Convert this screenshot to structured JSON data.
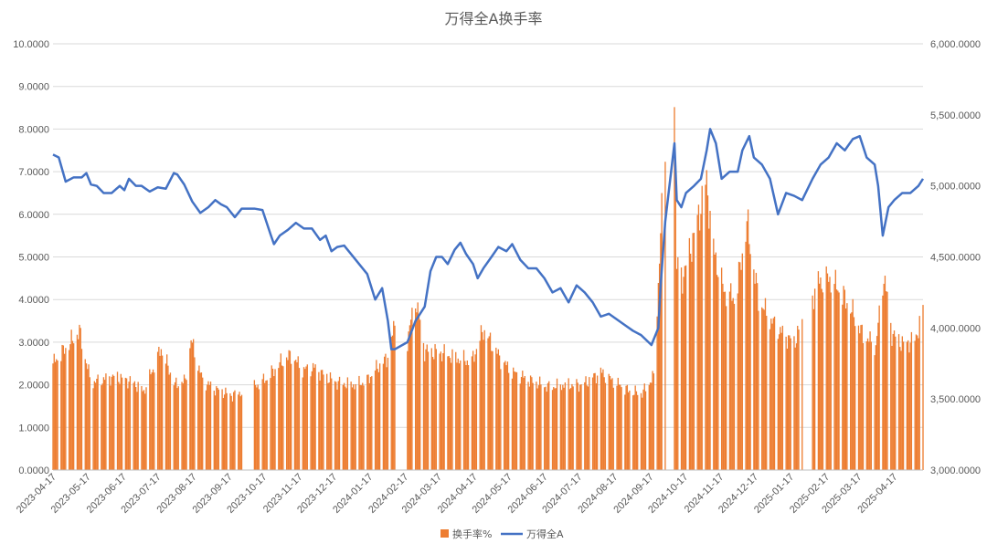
{
  "chart_data": {
    "type": "bar+line",
    "title": "万得全A换手率",
    "left_axis": {
      "min": 0,
      "max": 10,
      "step": 1,
      "tick_labels": [
        "0.0000",
        "1.0000",
        "2.0000",
        "3.0000",
        "4.0000",
        "5.0000",
        "6.0000",
        "7.0000",
        "8.0000",
        "9.0000",
        "10.0000"
      ]
    },
    "right_axis": {
      "min": 3000,
      "max": 6000,
      "step": 500,
      "tick_labels": [
        "3,000.0000",
        "3,500.0000",
        "4,000.0000",
        "4,500.0000",
        "5,000.0000",
        "5,500.0000",
        "6,000.0000"
      ]
    },
    "x_tick_labels": [
      "2023-04-17",
      "2023-05-17",
      "2023-06-17",
      "2023-07-17",
      "2023-08-17",
      "2023-09-17",
      "2023-10-17",
      "2023-11-17",
      "2023-12-17",
      "2024-01-17",
      "2024-02-17",
      "2024-03-17",
      "2024-04-17",
      "2024-05-17",
      "2024-06-17",
      "2024-07-17",
      "2024-08-17",
      "2024-09-17",
      "2024-10-17",
      "2024-11-17",
      "2024-12-17",
      "2025-01-17",
      "2025-02-17",
      "2025-03-17",
      "2025-04-17"
    ],
    "x_range": [
      "2023-04-17",
      "2025-05-12"
    ],
    "grid": true,
    "legend_position": "bottom",
    "colors": {
      "bar": "#ED7D31",
      "line": "#4472C4"
    },
    "series": [
      {
        "name": "换手率%",
        "type": "bar",
        "axis": "left",
        "points": [
          [
            "2023-04-17",
            2.5
          ],
          [
            "2023-05-10",
            3.25
          ],
          [
            "2023-05-20",
            2.05
          ],
          [
            "2023-06-10",
            2.2
          ],
          [
            "2023-06-26",
            2.05
          ],
          [
            "2023-07-05",
            1.85
          ],
          [
            "2023-07-20",
            2.85
          ],
          [
            "2023-08-01",
            2.0
          ],
          [
            "2023-08-10",
            2.1
          ],
          [
            "2023-08-15",
            3.05
          ],
          [
            "2023-08-25",
            2.1
          ],
          [
            "2023-09-05",
            1.9
          ],
          [
            "2023-09-20",
            1.75
          ],
          [
            "2023-10-09",
            1.95
          ],
          [
            "2023-10-20",
            2.15
          ],
          [
            "2023-10-31",
            2.5
          ],
          [
            "2023-11-10",
            2.7
          ],
          [
            "2023-11-20",
            2.35
          ],
          [
            "2023-11-30",
            2.4
          ],
          [
            "2023-12-10",
            2.2
          ],
          [
            "2023-12-20",
            2.05
          ],
          [
            "2024-01-05",
            2.0
          ],
          [
            "2024-01-15",
            2.1
          ],
          [
            "2024-01-25",
            2.45
          ],
          [
            "2024-02-01",
            2.6
          ],
          [
            "2024-02-08",
            3.4
          ],
          [
            "2024-02-19",
            3.05
          ],
          [
            "2024-02-26",
            4.05
          ],
          [
            "2024-03-05",
            2.8
          ],
          [
            "2024-03-20",
            2.75
          ],
          [
            "2024-04-05",
            2.6
          ],
          [
            "2024-04-15",
            2.55
          ],
          [
            "2024-04-25",
            3.3
          ],
          [
            "2024-05-10",
            2.6
          ],
          [
            "2024-05-20",
            2.3
          ],
          [
            "2024-06-05",
            2.1
          ],
          [
            "2024-06-20",
            1.95
          ],
          [
            "2024-07-05",
            2.0
          ],
          [
            "2024-07-20",
            2.0
          ],
          [
            "2024-08-05",
            2.3
          ],
          [
            "2024-08-15",
            2.1
          ],
          [
            "2024-08-30",
            1.85
          ],
          [
            "2024-09-10",
            1.8
          ],
          [
            "2024-09-20",
            2.2
          ],
          [
            "2024-09-26",
            5.5
          ],
          [
            "2024-09-30",
            7.5
          ],
          [
            "2024-10-08",
            9.0
          ],
          [
            "2024-10-10",
            4.8
          ],
          [
            "2024-10-15",
            4.5
          ],
          [
            "2024-10-25",
            5.5
          ],
          [
            "2024-11-05",
            6.8
          ],
          [
            "2024-11-10",
            5.3
          ],
          [
            "2024-11-20",
            4.2
          ],
          [
            "2024-11-30",
            4.0
          ],
          [
            "2024-12-10",
            5.8
          ],
          [
            "2024-12-20",
            4.0
          ],
          [
            "2024-12-31",
            3.5
          ],
          [
            "2025-01-10",
            3.2
          ],
          [
            "2025-01-20",
            3.0
          ],
          [
            "2025-02-10",
            4.4
          ],
          [
            "2025-02-20",
            4.5
          ],
          [
            "2025-03-01",
            4.2
          ],
          [
            "2025-03-10",
            3.8
          ],
          [
            "2025-03-20",
            3.2
          ],
          [
            "2025-04-01",
            2.9
          ],
          [
            "2025-04-08",
            4.6
          ],
          [
            "2025-04-15",
            3.2
          ],
          [
            "2025-04-25",
            2.95
          ],
          [
            "2025-05-05",
            3.05
          ],
          [
            "2025-05-12",
            3.7
          ]
        ]
      },
      {
        "name": "万得全A",
        "type": "line",
        "axis": "right",
        "points": [
          [
            "2023-04-17",
            5220
          ],
          [
            "2023-04-22",
            5200
          ],
          [
            "2023-04-28",
            5030
          ],
          [
            "2023-05-05",
            5060
          ],
          [
            "2023-05-12",
            5060
          ],
          [
            "2023-05-16",
            5090
          ],
          [
            "2023-05-20",
            5010
          ],
          [
            "2023-05-25",
            5000
          ],
          [
            "2023-05-31",
            4950
          ],
          [
            "2023-06-07",
            4950
          ],
          [
            "2023-06-14",
            5000
          ],
          [
            "2023-06-18",
            4970
          ],
          [
            "2023-06-22",
            5050
          ],
          [
            "2023-06-28",
            5000
          ],
          [
            "2023-07-03",
            5000
          ],
          [
            "2023-07-10",
            4960
          ],
          [
            "2023-07-17",
            4990
          ],
          [
            "2023-07-24",
            4980
          ],
          [
            "2023-07-31",
            5090
          ],
          [
            "2023-08-03",
            5080
          ],
          [
            "2023-08-09",
            5010
          ],
          [
            "2023-08-16",
            4890
          ],
          [
            "2023-08-23",
            4810
          ],
          [
            "2023-08-30",
            4850
          ],
          [
            "2023-09-05",
            4900
          ],
          [
            "2023-09-10",
            4870
          ],
          [
            "2023-09-15",
            4850
          ],
          [
            "2023-09-22",
            4780
          ],
          [
            "2023-09-28",
            4840
          ],
          [
            "2023-10-09",
            4840
          ],
          [
            "2023-10-16",
            4830
          ],
          [
            "2023-10-23",
            4660
          ],
          [
            "2023-10-26",
            4590
          ],
          [
            "2023-10-31",
            4650
          ],
          [
            "2023-11-07",
            4690
          ],
          [
            "2023-11-14",
            4740
          ],
          [
            "2023-11-21",
            4700
          ],
          [
            "2023-11-28",
            4700
          ],
          [
            "2023-12-05",
            4620
          ],
          [
            "2023-12-10",
            4650
          ],
          [
            "2023-12-15",
            4540
          ],
          [
            "2023-12-20",
            4570
          ],
          [
            "2023-12-26",
            4580
          ],
          [
            "2024-01-02",
            4510
          ],
          [
            "2024-01-08",
            4450
          ],
          [
            "2024-01-15",
            4380
          ],
          [
            "2024-01-22",
            4200
          ],
          [
            "2024-01-28",
            4280
          ],
          [
            "2024-02-02",
            4050
          ],
          [
            "2024-02-05",
            3850
          ],
          [
            "2024-02-08",
            3850
          ],
          [
            "2024-02-19",
            3900
          ],
          [
            "2024-02-26",
            4050
          ],
          [
            "2024-03-05",
            4150
          ],
          [
            "2024-03-10",
            4400
          ],
          [
            "2024-03-15",
            4500
          ],
          [
            "2024-03-20",
            4500
          ],
          [
            "2024-03-25",
            4450
          ],
          [
            "2024-03-31",
            4550
          ],
          [
            "2024-04-05",
            4600
          ],
          [
            "2024-04-10",
            4520
          ],
          [
            "2024-04-16",
            4450
          ],
          [
            "2024-04-20",
            4350
          ],
          [
            "2024-04-25",
            4420
          ],
          [
            "2024-05-02",
            4500
          ],
          [
            "2024-05-08",
            4570
          ],
          [
            "2024-05-15",
            4540
          ],
          [
            "2024-05-20",
            4590
          ],
          [
            "2024-05-27",
            4480
          ],
          [
            "2024-06-03",
            4420
          ],
          [
            "2024-06-10",
            4420
          ],
          [
            "2024-06-17",
            4350
          ],
          [
            "2024-06-24",
            4250
          ],
          [
            "2024-07-01",
            4280
          ],
          [
            "2024-07-08",
            4180
          ],
          [
            "2024-07-15",
            4300
          ],
          [
            "2024-07-22",
            4250
          ],
          [
            "2024-07-29",
            4180
          ],
          [
            "2024-08-05",
            4080
          ],
          [
            "2024-08-12",
            4100
          ],
          [
            "2024-08-19",
            4060
          ],
          [
            "2024-08-26",
            4020
          ],
          [
            "2024-09-02",
            3980
          ],
          [
            "2024-09-09",
            3950
          ],
          [
            "2024-09-18",
            3880
          ],
          [
            "2024-09-24",
            4000
          ],
          [
            "2024-09-26",
            4300
          ],
          [
            "2024-09-30",
            4750
          ],
          [
            "2024-10-08",
            5300
          ],
          [
            "2024-10-10",
            4900
          ],
          [
            "2024-10-14",
            4850
          ],
          [
            "2024-10-18",
            4950
          ],
          [
            "2024-10-25",
            5000
          ],
          [
            "2024-10-31",
            5050
          ],
          [
            "2024-11-05",
            5250
          ],
          [
            "2024-11-08",
            5400
          ],
          [
            "2024-11-13",
            5300
          ],
          [
            "2024-11-18",
            5050
          ],
          [
            "2024-11-25",
            5100
          ],
          [
            "2024-12-02",
            5100
          ],
          [
            "2024-12-06",
            5250
          ],
          [
            "2024-12-12",
            5350
          ],
          [
            "2024-12-16",
            5200
          ],
          [
            "2024-12-23",
            5150
          ],
          [
            "2024-12-30",
            5050
          ],
          [
            "2025-01-06",
            4800
          ],
          [
            "2025-01-13",
            4950
          ],
          [
            "2025-01-20",
            4930
          ],
          [
            "2025-01-27",
            4900
          ],
          [
            "2025-02-05",
            5050
          ],
          [
            "2025-02-12",
            5150
          ],
          [
            "2025-02-19",
            5200
          ],
          [
            "2025-02-26",
            5300
          ],
          [
            "2025-03-05",
            5250
          ],
          [
            "2025-03-12",
            5330
          ],
          [
            "2025-03-18",
            5350
          ],
          [
            "2025-03-24",
            5200
          ],
          [
            "2025-03-31",
            5150
          ],
          [
            "2025-04-03",
            5000
          ],
          [
            "2025-04-07",
            4650
          ],
          [
            "2025-04-12",
            4850
          ],
          [
            "2025-04-17",
            4900
          ],
          [
            "2025-04-24",
            4950
          ],
          [
            "2025-05-01",
            4950
          ],
          [
            "2025-05-08",
            5000
          ],
          [
            "2025-05-12",
            5050
          ]
        ]
      }
    ]
  }
}
